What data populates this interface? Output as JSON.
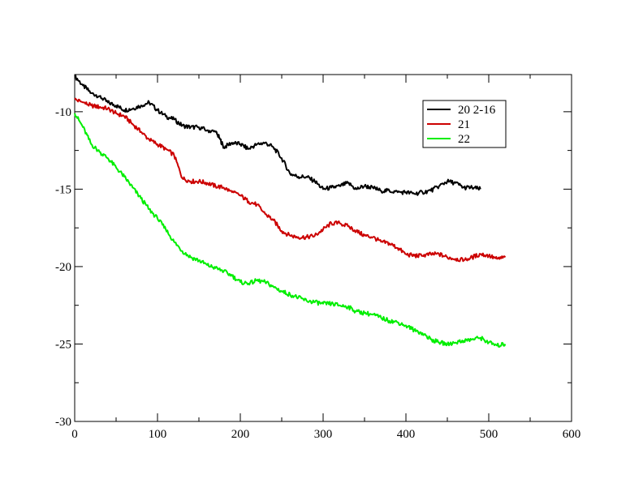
{
  "chart_data": {
    "type": "line",
    "title": "",
    "xlabel": "",
    "ylabel": "",
    "xlim": [
      0,
      600
    ],
    "ylim": [
      -30,
      -7.6
    ],
    "x_ticks": [
      0,
      100,
      200,
      300,
      400,
      500,
      600
    ],
    "y_ticks": [
      -30,
      -25,
      -20,
      -15,
      -10
    ],
    "x_minor_step": 50,
    "y_minor_step": 2.5,
    "grid": false,
    "legend": "top-right",
    "series": [
      {
        "name": "20 2-16",
        "color": "#000000",
        "x": [
          0,
          10,
          20,
          30,
          40,
          50,
          60,
          70,
          80,
          90,
          100,
          110,
          120,
          130,
          140,
          150,
          160,
          170,
          175,
          180,
          190,
          200,
          210,
          220,
          230,
          240,
          250,
          260,
          270,
          280,
          290,
          300,
          310,
          320,
          330,
          340,
          350,
          360,
          370,
          380,
          390,
          400,
          410,
          420,
          430,
          440,
          450,
          460,
          470,
          480,
          490
        ],
        "y": [
          -7.7,
          -8.3,
          -8.8,
          -9.0,
          -9.4,
          -9.6,
          -9.9,
          -9.8,
          -9.6,
          -9.4,
          -9.9,
          -10.3,
          -10.5,
          -10.9,
          -11.0,
          -11.0,
          -11.2,
          -11.3,
          -11.7,
          -12.3,
          -12.0,
          -12.1,
          -12.4,
          -12.1,
          -12.0,
          -12.3,
          -13.0,
          -14.0,
          -14.2,
          -14.2,
          -14.5,
          -15.0,
          -14.9,
          -14.8,
          -14.6,
          -15.0,
          -14.8,
          -14.9,
          -15.1,
          -15.1,
          -15.2,
          -15.2,
          -15.3,
          -15.2,
          -15.1,
          -14.8,
          -14.5,
          -14.6,
          -14.9,
          -14.9,
          -15.0
        ]
      },
      {
        "name": "21",
        "color": "#cc0000",
        "x": [
          0,
          10,
          20,
          30,
          40,
          50,
          60,
          70,
          80,
          90,
          100,
          110,
          120,
          130,
          140,
          150,
          160,
          170,
          180,
          190,
          200,
          210,
          220,
          230,
          240,
          250,
          260,
          270,
          280,
          290,
          300,
          310,
          320,
          330,
          340,
          350,
          360,
          370,
          380,
          390,
          400,
          410,
          420,
          430,
          440,
          450,
          460,
          470,
          480,
          490,
          500,
          510,
          520
        ],
        "y": [
          -9.2,
          -9.4,
          -9.6,
          -9.7,
          -9.8,
          -10.1,
          -10.3,
          -10.8,
          -11.3,
          -11.8,
          -12.1,
          -12.4,
          -12.8,
          -14.3,
          -14.5,
          -14.5,
          -14.6,
          -14.8,
          -14.9,
          -15.2,
          -15.4,
          -15.8,
          -16.0,
          -16.6,
          -17.0,
          -17.7,
          -18.0,
          -18.1,
          -18.1,
          -18.0,
          -17.6,
          -17.2,
          -17.2,
          -17.4,
          -17.7,
          -18.0,
          -18.1,
          -18.4,
          -18.5,
          -18.8,
          -19.2,
          -19.3,
          -19.3,
          -19.2,
          -19.2,
          -19.4,
          -19.5,
          -19.6,
          -19.4,
          -19.2,
          -19.3,
          -19.5,
          -19.4
        ]
      },
      {
        "name": "22",
        "color": "#00ee00",
        "x": [
          0,
          10,
          20,
          30,
          40,
          50,
          60,
          70,
          80,
          90,
          100,
          110,
          120,
          130,
          140,
          150,
          160,
          170,
          180,
          190,
          200,
          210,
          220,
          230,
          240,
          250,
          260,
          270,
          280,
          290,
          300,
          310,
          320,
          330,
          340,
          350,
          360,
          370,
          380,
          390,
          400,
          410,
          420,
          430,
          440,
          450,
          460,
          470,
          480,
          490,
          500,
          510,
          520
        ],
        "y": [
          -10.1,
          -11.0,
          -12.1,
          -12.6,
          -13.0,
          -13.6,
          -14.2,
          -14.9,
          -15.6,
          -16.3,
          -16.9,
          -17.6,
          -18.4,
          -19.0,
          -19.4,
          -19.6,
          -19.9,
          -20.1,
          -20.3,
          -20.6,
          -21.0,
          -21.1,
          -20.9,
          -21.0,
          -21.3,
          -21.6,
          -21.8,
          -22.0,
          -22.2,
          -22.3,
          -22.4,
          -22.4,
          -22.5,
          -22.6,
          -22.9,
          -23.0,
          -23.1,
          -23.3,
          -23.5,
          -23.6,
          -23.8,
          -24.1,
          -24.3,
          -24.7,
          -24.9,
          -25.0,
          -24.9,
          -24.8,
          -24.7,
          -24.6,
          -24.9,
          -25.1,
          -25.0
        ]
      }
    ]
  }
}
